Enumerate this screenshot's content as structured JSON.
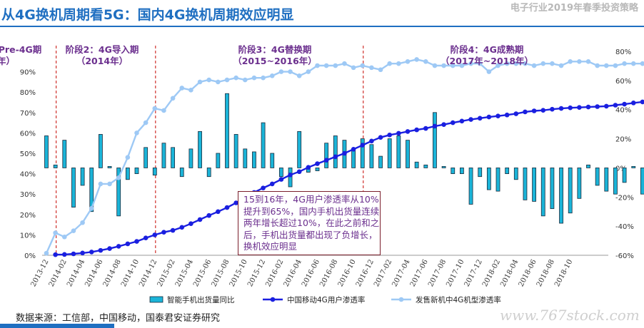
{
  "header": {
    "title": "从4G换机周期看5G：国内4G换机周期效应明显",
    "report_name": "电子行业2019年春季投资策略"
  },
  "source": "数据来源：工信部，中国移动，国泰君安证券研究",
  "watermark": "www.767stock.com",
  "annotation": "15到16年，4G用户渗透率从10%提升到65%，国内手机出货量连续两年增长超过10%，在此之前和之后，手机出货量都出现了负增长，换机效应明显",
  "phases": [
    {
      "name": "Pre-4G期",
      "period": "年）"
    },
    {
      "name": "阶段2：4G导入期",
      "period": "（2014年）"
    },
    {
      "name": "阶段3：4G替换期",
      "period": "（2015~2016年）"
    },
    {
      "name": "阶段4：4G成熟期",
      "period": "（2017年~2018年）"
    }
  ],
  "colors": {
    "bars": "#1bb4d8",
    "user_penetration": "#1a1fe0",
    "new_model_share": "#9ec9f5",
    "phase_divider": "#d0312d",
    "title": "#1f6fc1"
  },
  "chart_data": {
    "type": "bar+line",
    "x_ticks": [
      "2013-12",
      "2014-02",
      "2014-04",
      "2014-06",
      "2014-08",
      "2014-10",
      "2014-12",
      "2015-02",
      "2015-04",
      "2015-06",
      "2015-08",
      "2015-10",
      "2015-12",
      "2016-02",
      "2016-04",
      "2016-06",
      "2016-08",
      "2016-10",
      "2016-12",
      "2017-02",
      "2017-04",
      "2017-06",
      "2017-08",
      "2017-10",
      "2017-12",
      "2018-02",
      "2018-04",
      "2018-06",
      "2018-08",
      "2018-10"
    ],
    "left_axis": {
      "ticks": [
        "0%",
        "10%",
        "20%",
        "30%",
        "40%",
        "50%",
        "60%",
        "70%",
        "80%",
        "90%"
      ],
      "range": [
        0,
        1
      ]
    },
    "right_axis": {
      "ticks": [
        "-60%",
        "-40%",
        "-20%",
        "0%",
        "20%",
        "40%",
        "60%",
        "80%"
      ],
      "range": [
        -0.6,
        0.8
      ]
    },
    "legend": [
      "智能手机出货量同比",
      "中国移动4G用户渗透率",
      "发售新机中4G机型渗透率"
    ],
    "legend_position": "bottom",
    "series": [
      {
        "name": "智能手机出货量同比",
        "type": "bar",
        "axis": "right",
        "start": "2013-12",
        "values": [
          0.22,
          0.02,
          0.19,
          -0.27,
          -0.12,
          -0.3,
          0.23,
          0.01,
          -0.33,
          -0.08,
          -0.04,
          0.14,
          -0.05,
          0.17,
          0.14,
          -0.06,
          0.13,
          0.25,
          -0.06,
          0.1,
          0.51,
          0.23,
          0.13,
          0.11,
          0.31,
          0.1,
          -0.06,
          -0.13,
          0.25,
          -0.03,
          -0.02,
          0.17,
          0.22,
          0.19,
          0.13,
          0.2,
          0.16,
          0.08,
          0.2,
          0.22,
          0.19,
          0.04,
          0.02,
          0.38,
          0.01,
          -0.04,
          -0.04,
          -0.25,
          -0.06,
          -0.15,
          -0.16,
          -0.04,
          -0.08,
          -0.22,
          -0.23,
          -0.33,
          -0.28,
          -0.38,
          -0.31,
          -0.21,
          0.02,
          -0.12,
          -0.16,
          -0.18,
          -0.1,
          0.01,
          -0.18
        ]
      },
      {
        "name": "中国移动4G用户渗透率",
        "type": "line",
        "axis": "left",
        "start": "2014-01",
        "values": [
          0.003,
          0.004,
          0.007,
          0.011,
          0.016,
          0.024,
          0.033,
          0.044,
          0.056,
          0.068,
          0.085,
          0.1,
          0.113,
          0.122,
          0.137,
          0.155,
          0.175,
          0.195,
          0.214,
          0.234,
          0.257,
          0.283,
          0.308,
          0.33,
          0.35,
          0.372,
          0.394,
          0.41,
          0.431,
          0.449,
          0.466,
          0.483,
          0.5,
          0.52,
          0.54,
          0.56,
          0.578,
          0.59,
          0.598,
          0.607,
          0.615,
          0.622,
          0.633,
          0.641,
          0.65,
          0.658,
          0.666,
          0.672,
          0.678,
          0.683,
          0.688,
          0.694,
          0.703,
          0.708,
          0.711,
          0.716,
          0.72,
          0.723,
          0.725,
          0.727,
          0.729,
          0.731,
          0.736,
          0.741,
          0.747,
          0.752,
          0.758
        ]
      },
      {
        "name": "发售新机中4G机型渗透率",
        "type": "line",
        "axis": "left",
        "start": "2013-12",
        "values": [
          0.01,
          0.11,
          0.09,
          0.12,
          0.16,
          0.23,
          0.35,
          0.35,
          0.38,
          0.48,
          0.6,
          0.65,
          0.72,
          0.71,
          0.77,
          0.82,
          0.81,
          0.85,
          0.86,
          0.85,
          0.86,
          0.87,
          0.86,
          0.87,
          0.87,
          0.88,
          0.9,
          0.9,
          0.88,
          0.9,
          0.93,
          0.93,
          0.93,
          0.94,
          0.92,
          0.93,
          0.92,
          0.91,
          0.94,
          0.94,
          0.95,
          0.96,
          0.95,
          0.93,
          0.93,
          0.93,
          0.93,
          0.94,
          0.94,
          0.9,
          0.93,
          0.94,
          0.94,
          0.94,
          0.93,
          0.94,
          0.94,
          0.93,
          0.95,
          0.95,
          0.95,
          0.93,
          0.93,
          0.93,
          0.94,
          0.94,
          0.94
        ]
      }
    ]
  }
}
